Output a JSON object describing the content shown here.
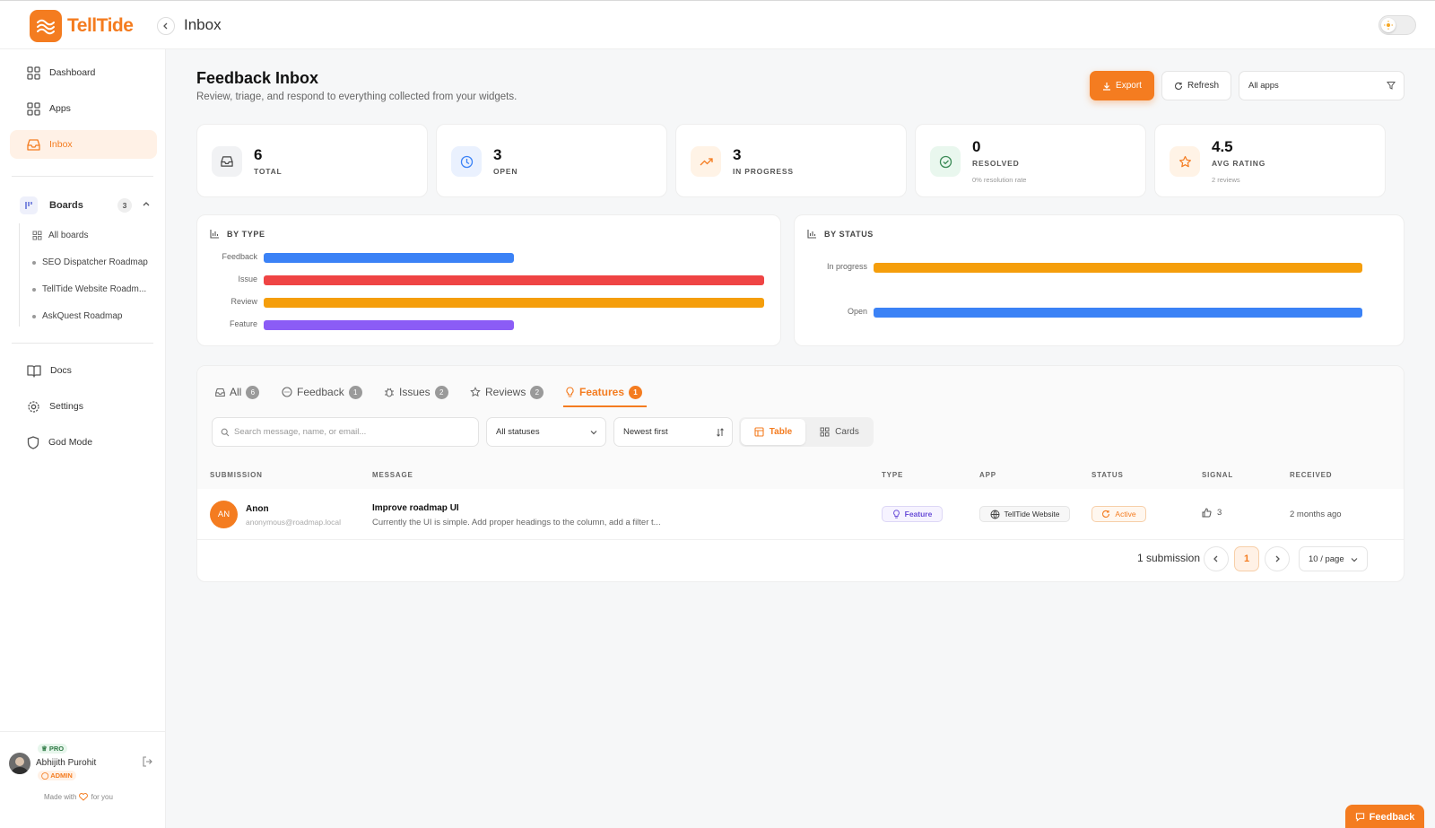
{
  "brand": {
    "name": "TellTide",
    "accent": "#f47c20"
  },
  "topbar": {
    "title": "Inbox"
  },
  "sidebar": {
    "nav": [
      {
        "label": "Dashboard",
        "icon": "grid-icon"
      },
      {
        "label": "Apps",
        "icon": "grid-icon"
      },
      {
        "label": "Inbox",
        "icon": "inbox-icon",
        "active": true
      }
    ],
    "boards": {
      "label": "Boards",
      "count": "3",
      "items": [
        {
          "label": "All boards"
        },
        {
          "label": "SEO Dispatcher Roadmap"
        },
        {
          "label": "TellTide Website Roadm..."
        },
        {
          "label": "AskQuest Roadmap"
        }
      ]
    },
    "bottom_nav": [
      {
        "label": "Docs"
      },
      {
        "label": "Settings"
      },
      {
        "label": "God Mode"
      }
    ],
    "user": {
      "plan": "PRO",
      "name": "Abhijith Purohit",
      "role": "ADMIN",
      "made_with": "Made with",
      "for_you": "for you"
    }
  },
  "header": {
    "title": "Feedback Inbox",
    "subtitle": "Review, triage, and respond to everything collected from your widgets.",
    "export_label": "Export",
    "refresh_label": "Refresh",
    "app_filter": "All apps"
  },
  "stats": [
    {
      "value": "6",
      "label": "TOTAL"
    },
    {
      "value": "3",
      "label": "OPEN"
    },
    {
      "value": "3",
      "label": "IN PROGRESS"
    },
    {
      "value": "0",
      "label": "RESOLVED",
      "note": "0% resolution rate"
    },
    {
      "value": "4.5",
      "label": "AVG RATING",
      "note": "2 reviews"
    }
  ],
  "chart_data": [
    {
      "type": "bar",
      "title": "BY TYPE",
      "categories": [
        "Feedback",
        "Issue",
        "Review",
        "Feature"
      ],
      "values": [
        1,
        2,
        2,
        1
      ],
      "colors": [
        "#3b82f6",
        "#ef4444",
        "#f59e0b",
        "#8b5cf6"
      ]
    },
    {
      "type": "bar",
      "title": "BY STATUS",
      "categories": [
        "In progress",
        "Open"
      ],
      "values": [
        3,
        3
      ],
      "colors": [
        "#f59e0b",
        "#3b82f6"
      ]
    }
  ],
  "tabs": [
    {
      "label": "All",
      "count": "6"
    },
    {
      "label": "Feedback",
      "count": "1"
    },
    {
      "label": "Issues",
      "count": "2"
    },
    {
      "label": "Reviews",
      "count": "2"
    },
    {
      "label": "Features",
      "count": "1",
      "active": true
    }
  ],
  "filters": {
    "search_placeholder": "Search message, name, or email...",
    "status": "All statuses",
    "sort": "Newest first",
    "view_table": "Table",
    "view_cards": "Cards"
  },
  "table": {
    "columns": [
      "SUBMISSION",
      "MESSAGE",
      "TYPE",
      "APP",
      "STATUS",
      "SIGNAL",
      "RECEIVED"
    ],
    "rows": [
      {
        "initials": "AN",
        "name": "Anon",
        "email": "anonymous@roadmap.local",
        "title": "Improve roadmap UI",
        "body": "Currently the UI is simple. Add proper headings to the column, add a filter t...",
        "type": "Feature",
        "app": "TellTide Website",
        "status": "Active",
        "signal": "3",
        "received": "2 months ago"
      }
    ]
  },
  "pagination": {
    "count": "1 submission",
    "page": "1",
    "per_page": "10 / page"
  },
  "feedback_widget": {
    "label": "Feedback"
  }
}
